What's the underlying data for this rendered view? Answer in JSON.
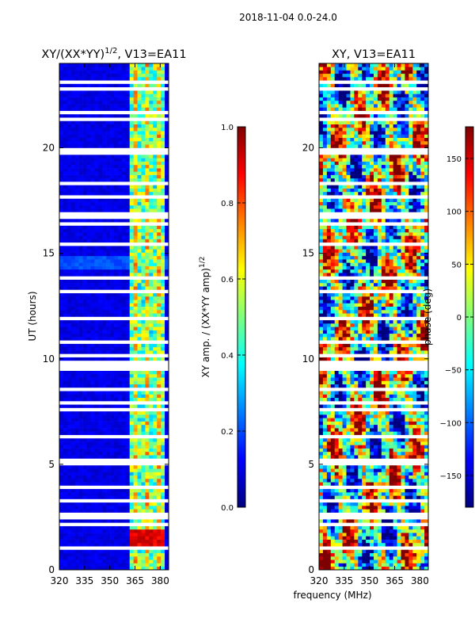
{
  "suptitle": "2018-11-04 0.0-24.0",
  "xlabel_shared": "frequency (MHz)",
  "colors": {
    "jet": [
      "#00007f",
      "#0000ff",
      "#007fff",
      "#00ffff",
      "#7fff7f",
      "#ffff00",
      "#ff7f00",
      "#ff0000",
      "#7f0000"
    ],
    "gap": "#ffffff",
    "frame": "#000000"
  },
  "chart_data": [
    {
      "type": "heatmap",
      "title_main": "XY/(XX*YY)",
      "title_exp": "1/2",
      "title_tail": ", V13=EA11",
      "xlabel": "",
      "ylabel": "UT (hours)",
      "xlim": [
        320,
        385
      ],
      "ylim": [
        0,
        24
      ],
      "xticks": [
        320,
        335,
        350,
        365,
        380
      ],
      "yticks": [
        0,
        5,
        10,
        15,
        20
      ],
      "x_tick_labels": [
        "320",
        "335",
        "350",
        "365",
        "380"
      ],
      "y_tick_labels": [
        "0",
        "5",
        "10",
        "15",
        "20"
      ],
      "rfi_band_mhz": [
        361,
        383
      ],
      "rfi_intensity": 0.55,
      "background_intensity": 0.07,
      "strong_rfi_hours": [
        1.2,
        1.9
      ],
      "strong_rfi_intensity": 0.95,
      "colorbar": {
        "label_main": "XY amp. / (XX*YY amp)",
        "label_exp": "1/2",
        "range": [
          0.0,
          1.0
        ],
        "ticks": [
          0.0,
          0.2,
          0.4,
          0.6,
          0.8,
          1.0
        ],
        "tick_labels": [
          "0.0",
          "0.2",
          "0.4",
          "0.6",
          "0.8",
          "1.0"
        ]
      }
    },
    {
      "type": "heatmap",
      "title": "XY, V13=EA11",
      "xlabel": "frequency (MHz)",
      "ylabel": "",
      "xlim": [
        320,
        385
      ],
      "ylim": [
        0,
        24
      ],
      "xticks": [
        320,
        335,
        350,
        365,
        380
      ],
      "yticks": [
        0,
        5,
        10,
        15,
        20
      ],
      "x_tick_labels": [
        "320",
        "335",
        "350",
        "365",
        "380"
      ],
      "y_tick_labels": [
        "0",
        "5",
        "10",
        "15",
        "20"
      ],
      "value_range_deg": [
        -180,
        180
      ],
      "colorbar": {
        "label": "phase (deg)",
        "range": [
          -180,
          180
        ],
        "ticks": [
          -150,
          -100,
          -50,
          0,
          50,
          100,
          150
        ],
        "tick_labels": [
          "−150",
          "−100",
          "−50",
          "0",
          "50",
          "100",
          "150"
        ]
      }
    }
  ]
}
